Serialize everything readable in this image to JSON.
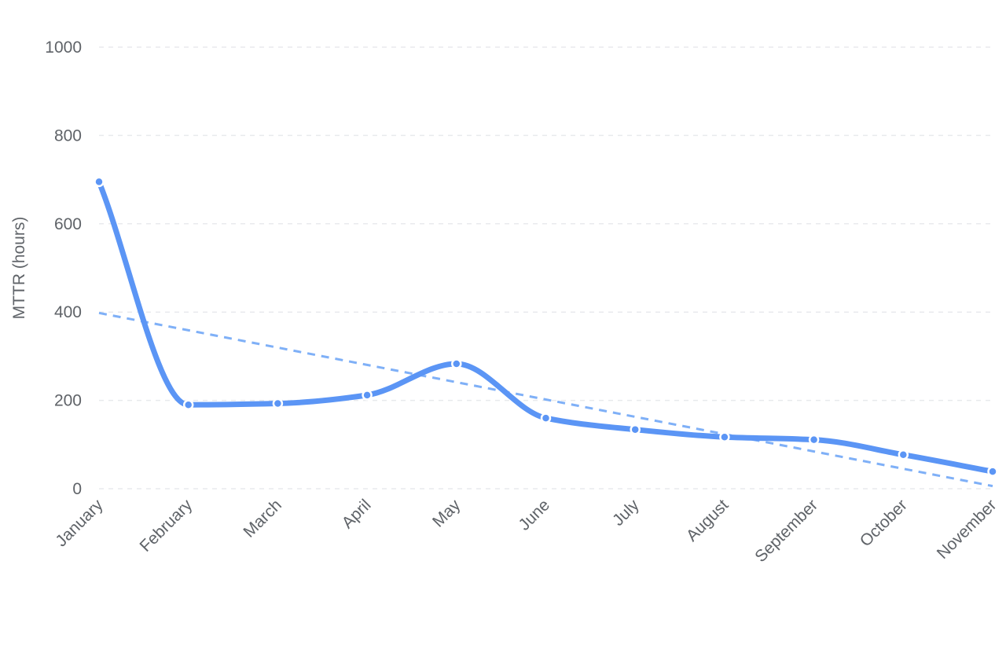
{
  "chart_data": {
    "type": "line",
    "title": "",
    "xlabel": "",
    "ylabel": "MTTR (hours)",
    "ylim": [
      0,
      1000
    ],
    "yticks": [
      0,
      200,
      400,
      600,
      800,
      1000
    ],
    "grid": true,
    "categories": [
      "January",
      "February",
      "March",
      "April",
      "May",
      "June",
      "July",
      "August",
      "September",
      "October",
      "November"
    ],
    "series": [
      {
        "values": [
          695,
          190,
          193,
          212,
          283,
          160,
          134,
          117,
          111,
          77,
          39
        ],
        "color": "#5b95f5",
        "smooth": true
      }
    ],
    "trendline": {
      "start": 398,
      "end": 6,
      "color": "#7fb0f7",
      "style": "dashed"
    }
  }
}
